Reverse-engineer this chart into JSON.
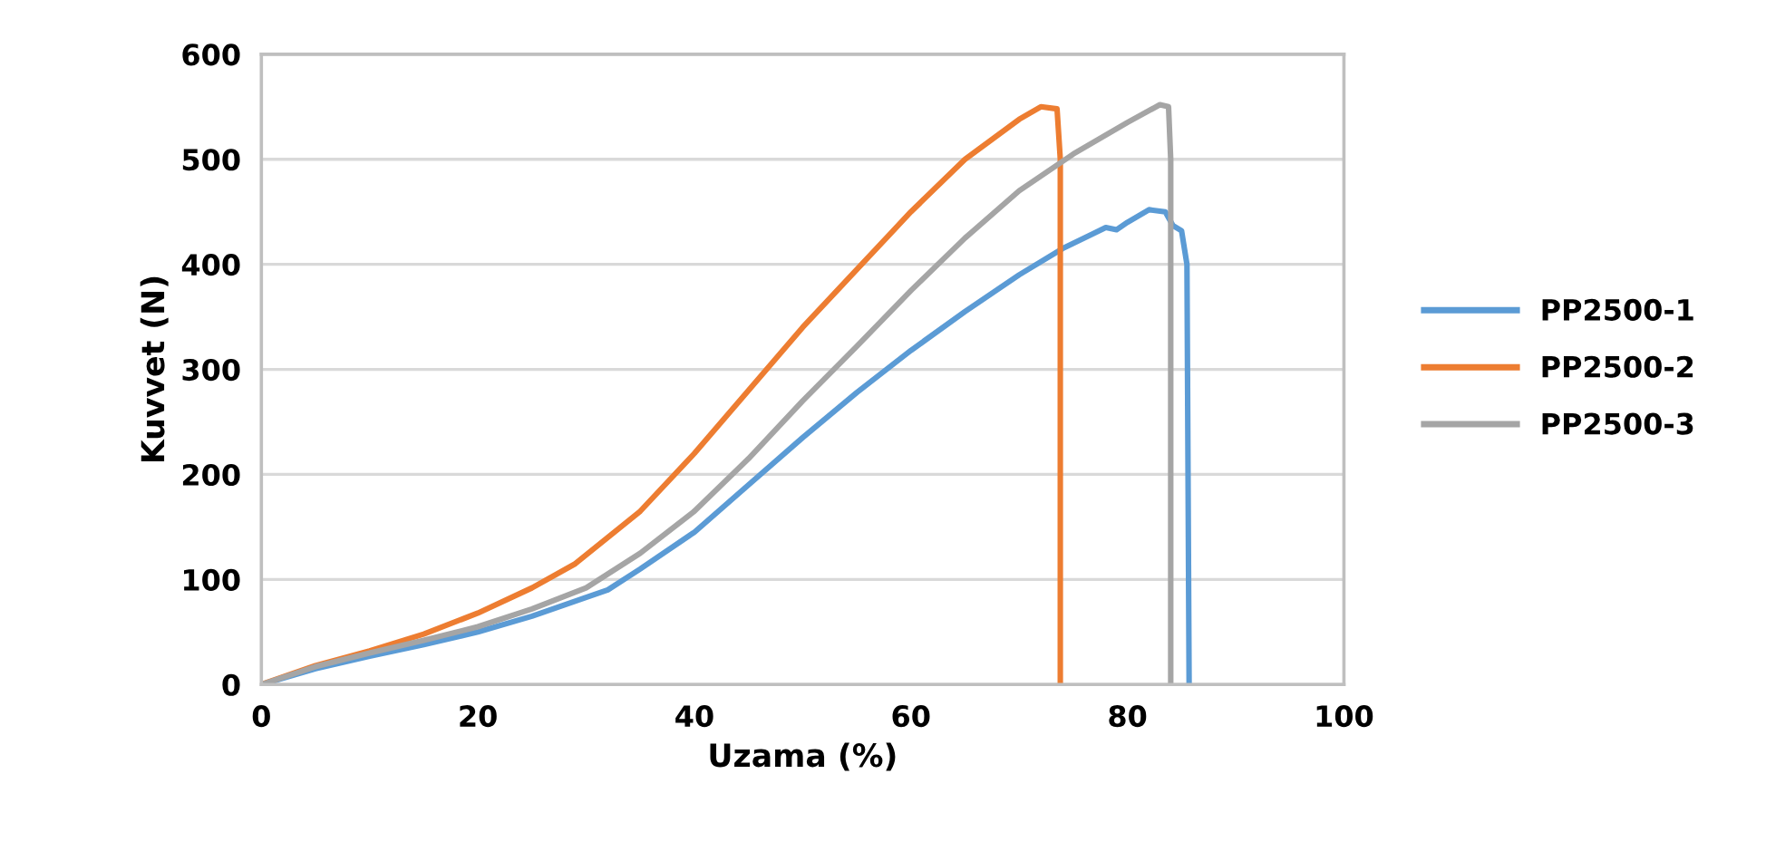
{
  "chart_data": {
    "type": "line",
    "xlabel": "Uzama (%)",
    "ylabel": "Kuvvet (N)",
    "xlim": [
      0,
      100
    ],
    "xticks": [
      0,
      20,
      40,
      60,
      80,
      100
    ],
    "ylim": [
      0,
      600
    ],
    "yticks": [
      0,
      100,
      200,
      300,
      400,
      500,
      600
    ],
    "grid": "y",
    "legend": "right",
    "marker": "none",
    "line_style": "solid",
    "series": [
      {
        "name": "PP2500-1",
        "color": "#5b9bd5",
        "x": [
          0,
          5,
          10,
          15,
          20,
          25,
          30,
          32,
          35,
          40,
          45,
          50,
          55,
          60,
          65,
          70,
          74,
          78,
          79,
          80,
          82,
          83.5,
          84.2,
          85,
          85.5,
          85.7
        ],
        "values": [
          0,
          15,
          27,
          38,
          50,
          65,
          83,
          90,
          110,
          145,
          190,
          235,
          278,
          318,
          355,
          390,
          415,
          435,
          433,
          440,
          452,
          450,
          437,
          432,
          400,
          0
        ]
      },
      {
        "name": "PP2500-2",
        "color": "#ed7d31",
        "x": [
          0,
          5,
          10,
          15,
          20,
          25,
          29,
          35,
          40,
          45,
          50,
          55,
          60,
          65,
          70,
          72,
          73.5,
          73.8,
          73.8
        ],
        "values": [
          0,
          18,
          32,
          48,
          68,
          92,
          115,
          165,
          220,
          280,
          340,
          395,
          450,
          500,
          538,
          550,
          548,
          500,
          0
        ]
      },
      {
        "name": "PP2500-3",
        "color": "#a5a5a5",
        "x": [
          0,
          5,
          10,
          15,
          20,
          25,
          30,
          35,
          40,
          45,
          50,
          55,
          60,
          65,
          70,
          75,
          80,
          83,
          83.8,
          84,
          84
        ],
        "values": [
          0,
          17,
          30,
          42,
          55,
          72,
          92,
          125,
          165,
          215,
          270,
          322,
          375,
          425,
          470,
          505,
          535,
          552,
          550,
          500,
          0
        ]
      }
    ]
  }
}
